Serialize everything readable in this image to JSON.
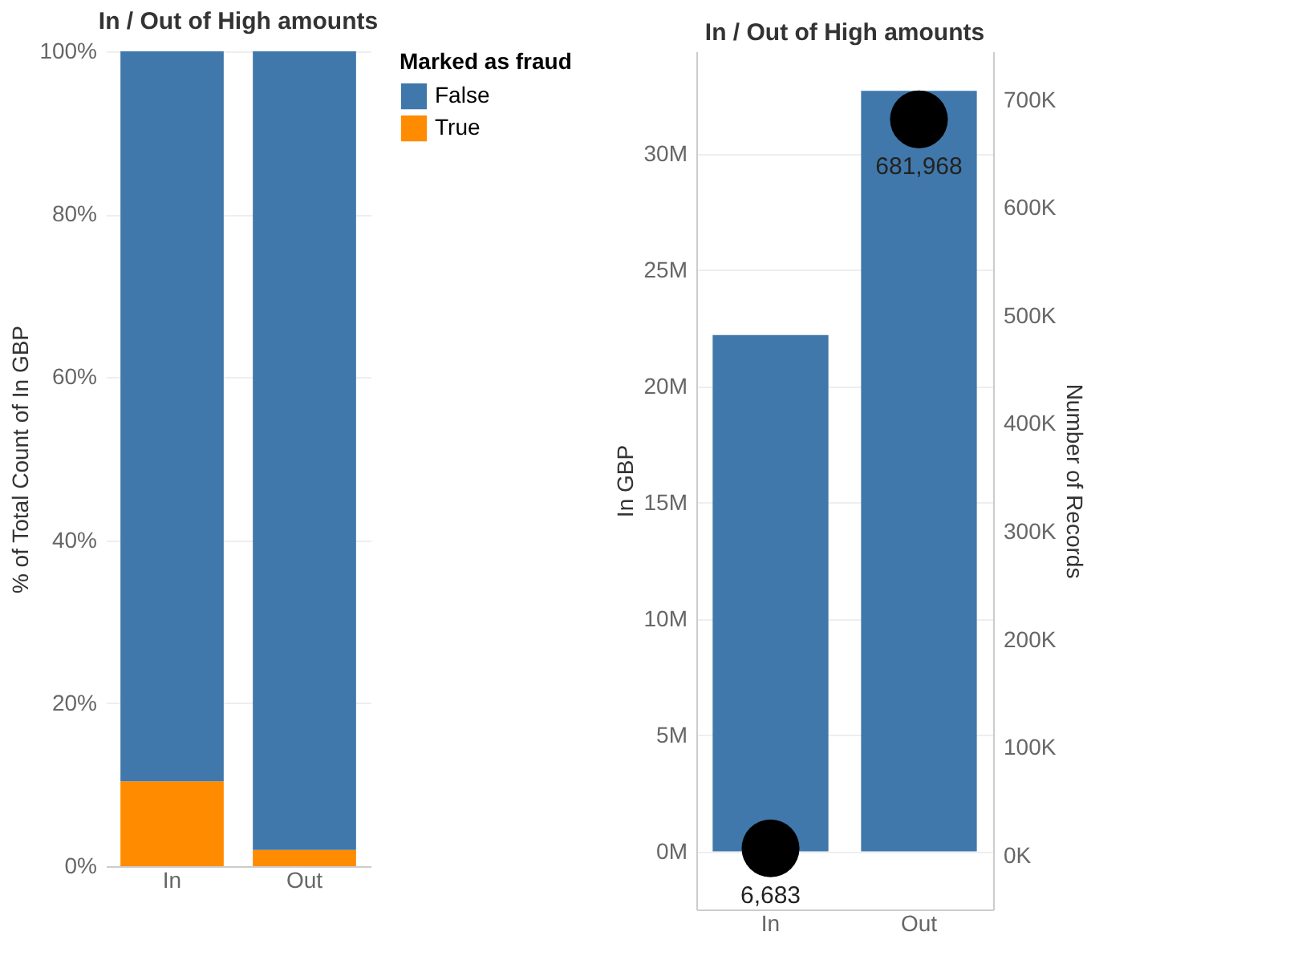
{
  "chart_data": [
    {
      "type": "bar",
      "title": "In / Out of High amounts",
      "ylabel": "% of Total Count of In GBP",
      "legend_title": "Marked as fraud",
      "categories": [
        "In",
        "Out"
      ],
      "stacked": true,
      "legend": "top right",
      "grid": "y",
      "ylim": [
        0,
        100
      ],
      "yticks": [
        {
          "value": 0,
          "label": "0%"
        },
        {
          "value": 20,
          "label": "20%"
        },
        {
          "value": 40,
          "label": "40%"
        },
        {
          "value": 60,
          "label": "60%"
        },
        {
          "value": 80,
          "label": "80%"
        },
        {
          "value": 100,
          "label": "100%"
        }
      ],
      "series": [
        {
          "name": "True",
          "color": "#ff8b00",
          "values": [
            10.4,
            2.0
          ]
        },
        {
          "name": "False",
          "color": "#4178ab",
          "values": [
            89.6,
            98.0
          ]
        }
      ]
    },
    {
      "type": "bar",
      "title": "In / Out of High amounts",
      "ylabel": "In GBP",
      "y2label": "Number of Records",
      "categories": [
        "In",
        "Out"
      ],
      "grid": "y",
      "marker": "circle",
      "ylim": [
        -2500000,
        34400000
      ],
      "yticks": [
        {
          "value": 0,
          "label": "0M"
        },
        {
          "value": 5000000,
          "label": "5M"
        },
        {
          "value": 10000000,
          "label": "10M"
        },
        {
          "value": 15000000,
          "label": "15M"
        },
        {
          "value": 20000000,
          "label": "20M"
        },
        {
          "value": 25000000,
          "label": "25M"
        },
        {
          "value": 30000000,
          "label": "30M"
        }
      ],
      "y2lim": [
        -50000,
        745000
      ],
      "y2ticks": [
        {
          "value": 0,
          "label": "0K"
        },
        {
          "value": 100000,
          "label": "100K"
        },
        {
          "value": 200000,
          "label": "200K"
        },
        {
          "value": 300000,
          "label": "300K"
        },
        {
          "value": 400000,
          "label": "400K"
        },
        {
          "value": 500000,
          "label": "500K"
        },
        {
          "value": 600000,
          "label": "600K"
        },
        {
          "value": 700000,
          "label": "700K"
        }
      ],
      "series": [
        {
          "color": "#4178ab",
          "values": [
            22200000,
            32700000
          ]
        },
        {
          "type": "scatter",
          "axis": "y2",
          "color": "#000000",
          "values": [
            6683,
            681968
          ],
          "value_labels": [
            "6,683",
            "681,968"
          ]
        }
      ]
    }
  ]
}
